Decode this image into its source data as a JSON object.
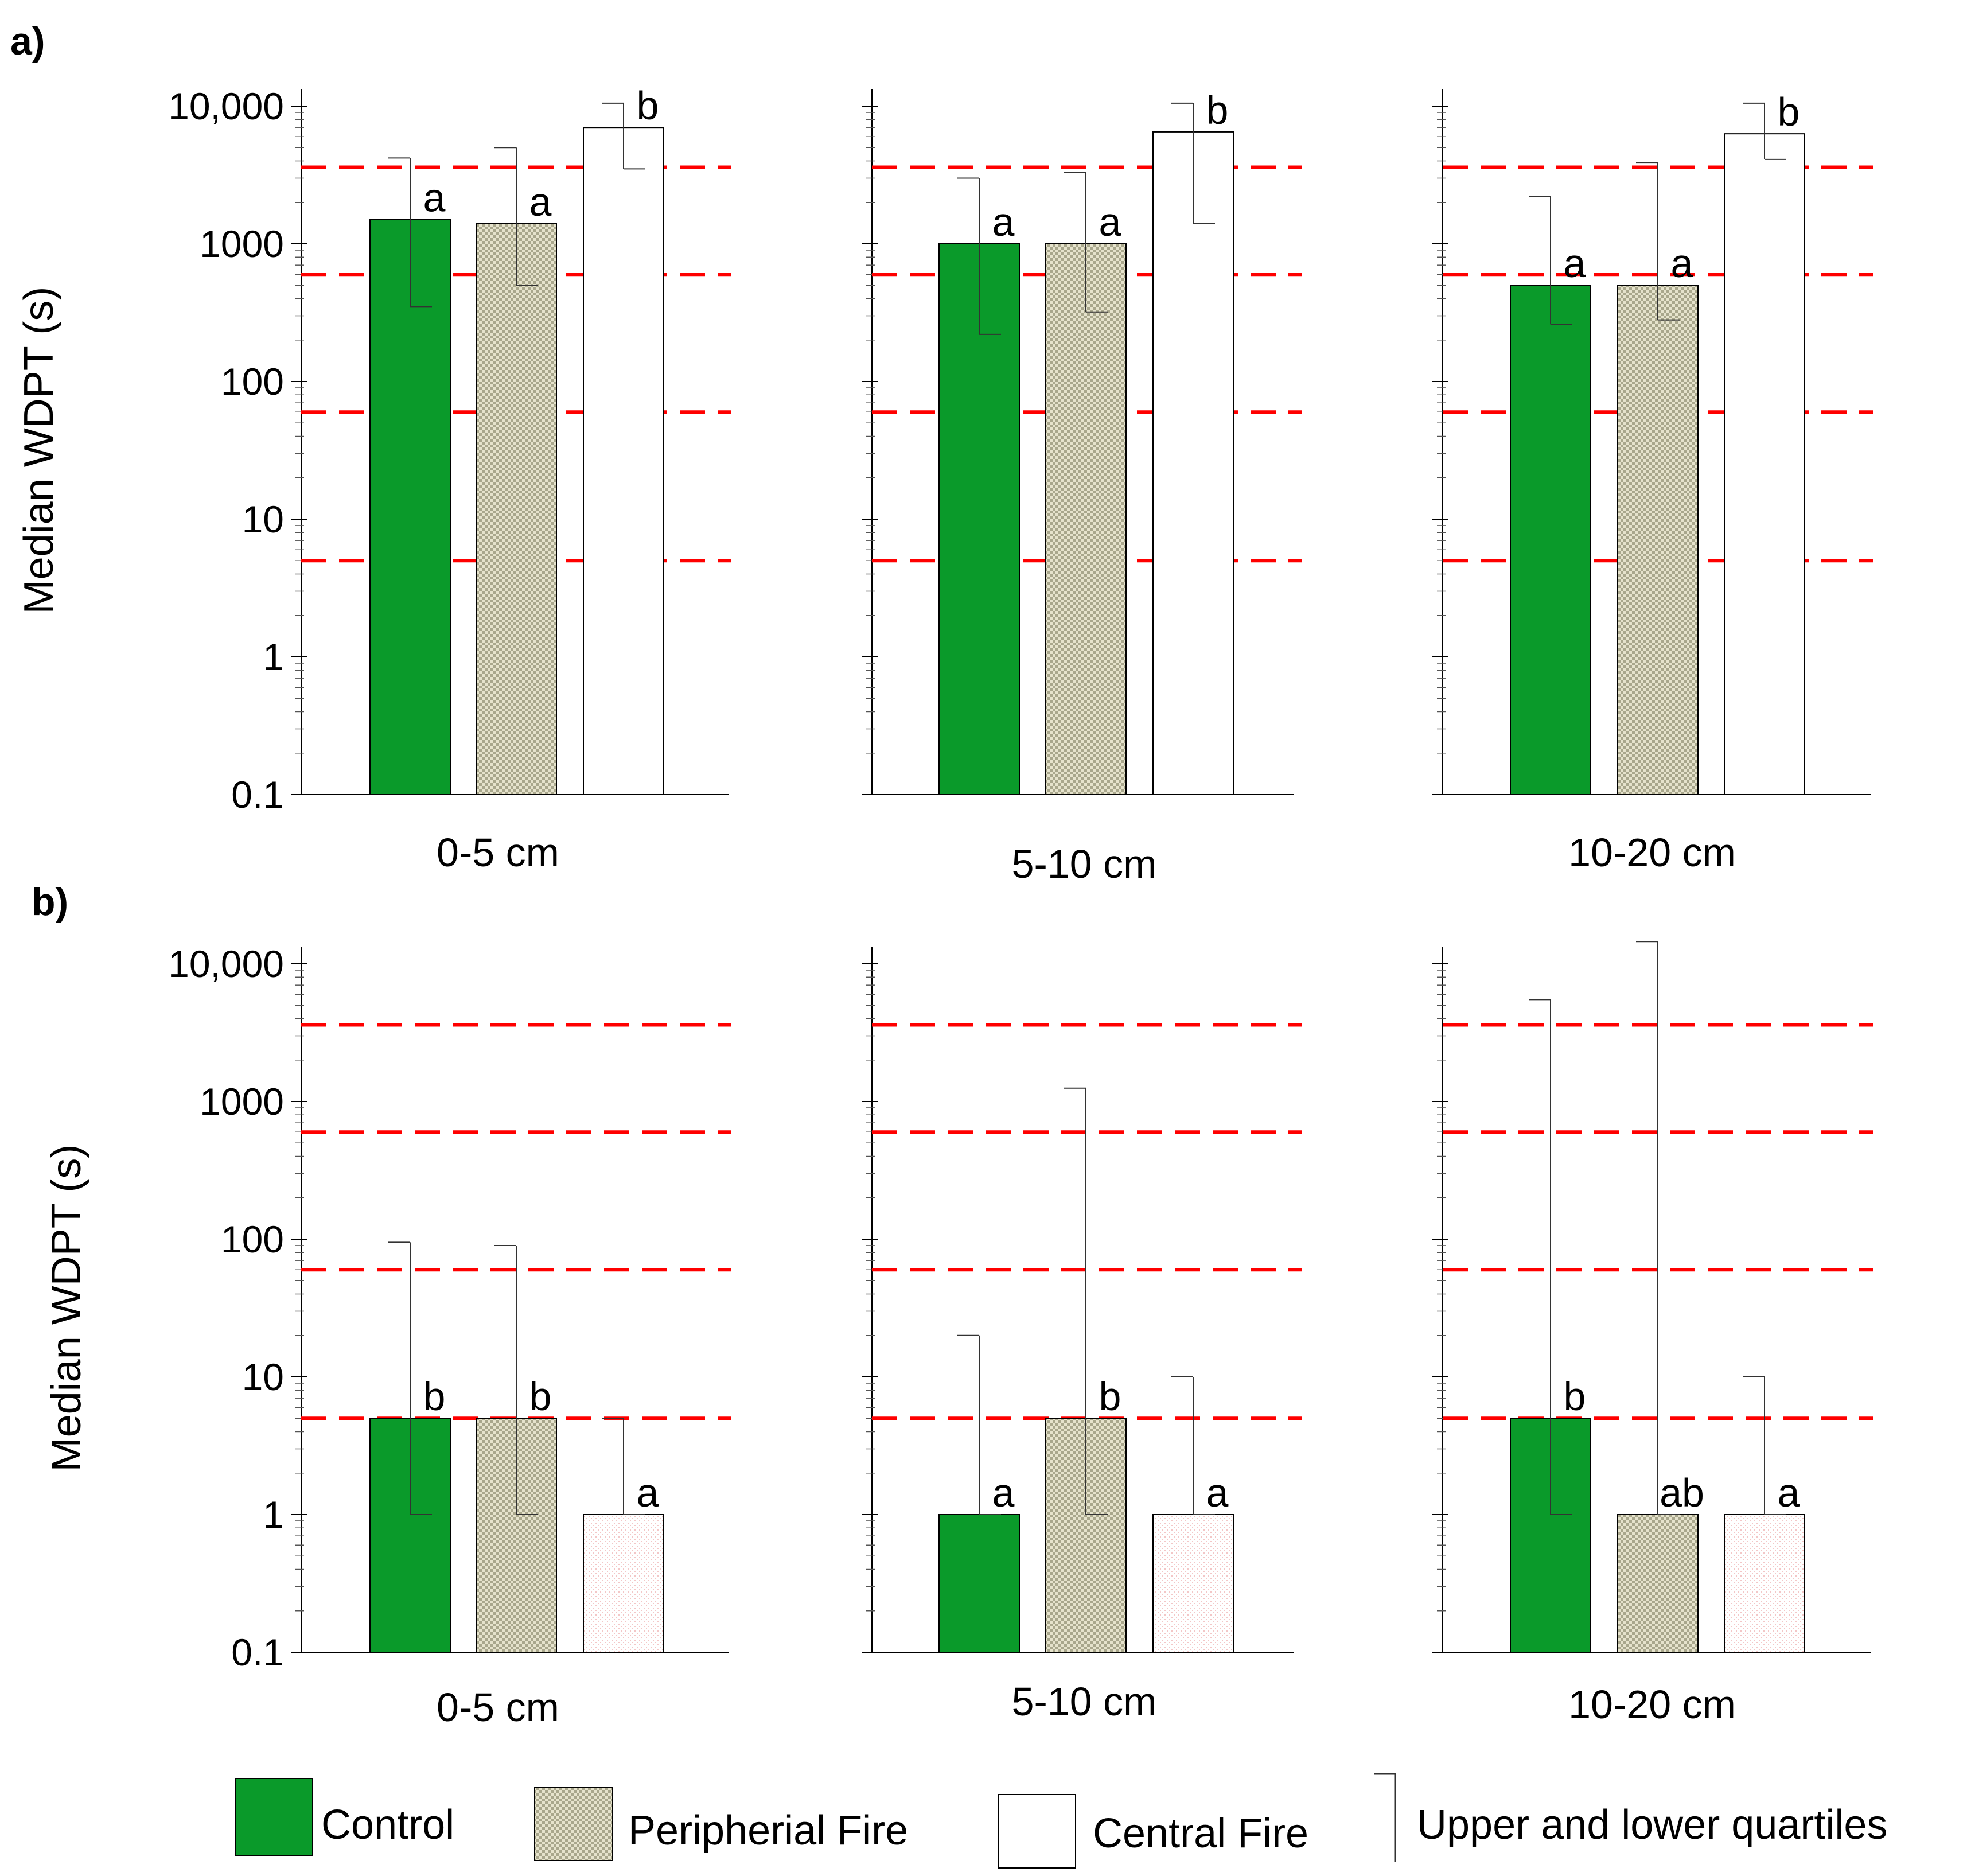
{
  "chart_data": {
    "type": "bar",
    "yscale": "log",
    "ylabel": "Median WDPT (s)",
    "ylim": [
      0.1,
      10000
    ],
    "y_ticks": [
      "0.1",
      "1",
      "10",
      "100",
      "1000",
      "10,000"
    ],
    "y_tick_values": [
      0.1,
      1,
      10,
      100,
      1000,
      10000
    ],
    "threshold_lines": [
      5,
      60,
      600,
      3600
    ],
    "series_names": [
      "Control",
      "Peripherial Fire",
      "Central Fire"
    ],
    "series_colors": [
      "#0a9a2a",
      "#d9d6bf",
      "#ffffff"
    ],
    "threshold_color": "#ff0000",
    "legend": {
      "control": "Control",
      "peripheral": "Peripherial Fire",
      "central": "Central Fire",
      "quartiles": "Upper and lower quartiles"
    },
    "panels": [
      {
        "label": "a)",
        "charts": [
          {
            "category": "0-5 cm",
            "bars": [
              {
                "series": "Control",
                "median": 1500,
                "lower": 350,
                "upper": 4200,
                "letter": "a"
              },
              {
                "series": "Peripherial Fire",
                "median": 1400,
                "lower": 500,
                "upper": 5000,
                "letter": "a"
              },
              {
                "series": "Central Fire",
                "median": 7000,
                "lower": 3500,
                "upper": 10500,
                "letter": "b"
              }
            ]
          },
          {
            "category": "5-10 cm",
            "bars": [
              {
                "series": "Control",
                "median": 1000,
                "lower": 220,
                "upper": 3000,
                "letter": "a"
              },
              {
                "series": "Peripherial Fire",
                "median": 1000,
                "lower": 320,
                "upper": 3300,
                "letter": "a"
              },
              {
                "series": "Central Fire",
                "median": 6500,
                "lower": 1400,
                "upper": 10500,
                "letter": "b"
              }
            ]
          },
          {
            "category": "10-20 cm",
            "bars": [
              {
                "series": "Control",
                "median": 500,
                "lower": 260,
                "upper": 2200,
                "letter": "a"
              },
              {
                "series": "Peripherial Fire",
                "median": 500,
                "lower": 280,
                "upper": 3900,
                "letter": "a"
              },
              {
                "series": "Central Fire",
                "median": 6300,
                "lower": 4100,
                "upper": 10500,
                "letter": "b"
              }
            ]
          }
        ]
      },
      {
        "label": "b)",
        "charts": [
          {
            "category": "0-5 cm",
            "bars": [
              {
                "series": "Control",
                "median": 5,
                "lower": 1,
                "upper": 95,
                "letter": "b"
              },
              {
                "series": "Peripherial Fire",
                "median": 5,
                "lower": 1,
                "upper": 90,
                "letter": "b"
              },
              {
                "series": "Central Fire",
                "median": 1,
                "lower": 1,
                "upper": 5,
                "letter": "a"
              }
            ]
          },
          {
            "category": "5-10 cm",
            "bars": [
              {
                "series": "Control",
                "median": 1,
                "lower": 1,
                "upper": 20,
                "letter": "a"
              },
              {
                "series": "Peripherial Fire",
                "median": 5,
                "lower": 1,
                "upper": 1250,
                "letter": "b"
              },
              {
                "series": "Central Fire",
                "median": 1,
                "lower": 1,
                "upper": 10,
                "letter": "a"
              }
            ]
          },
          {
            "category": "10-20 cm",
            "bars": [
              {
                "series": "Control",
                "median": 5,
                "lower": 1,
                "upper": 5500,
                "letter": "b"
              },
              {
                "series": "Peripherial Fire",
                "median": 1,
                "lower": 1,
                "upper": 14500,
                "letter": "ab"
              },
              {
                "series": "Central Fire",
                "median": 1,
                "lower": 1,
                "upper": 10,
                "letter": "a"
              }
            ]
          }
        ]
      }
    ]
  }
}
